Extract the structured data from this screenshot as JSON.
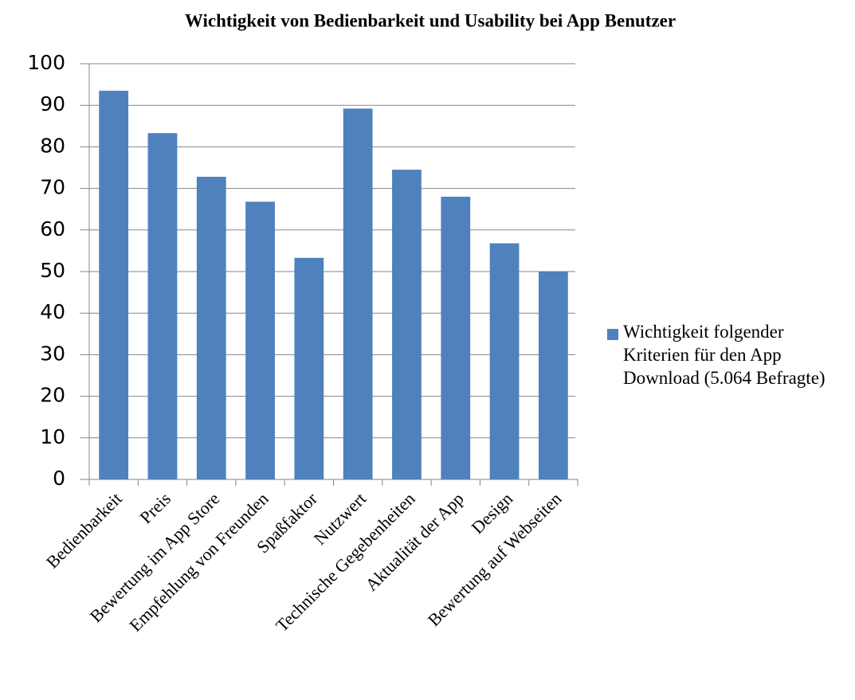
{
  "chart_data": {
    "type": "bar",
    "title": "Wichtigkeit von Bedienbarkeit und Usability bei App Benutzer",
    "categories": [
      "Bedienbarkeit",
      "Preis",
      "Bewertung im App Store",
      "Empfehlung von Freunden",
      "Spaßfaktor",
      "Nutzwert",
      "Technische Gegebenheiten",
      "Aktualität der App",
      "Design",
      "Bewertung auf Webseiten"
    ],
    "series": [
      {
        "name": "Wichtigkeit folgender Kriterien für den App Download (5.064 Befragte)",
        "color": "#4f81bd",
        "values": [
          93.5,
          83.3,
          72.8,
          66.8,
          53.3,
          89.2,
          74.5,
          68,
          56.8,
          50
        ]
      }
    ],
    "ylim": [
      0,
      100
    ],
    "yticks": [
      0,
      10,
      20,
      30,
      40,
      50,
      60,
      70,
      80,
      90,
      100
    ],
    "grid": true,
    "legend": "right"
  }
}
